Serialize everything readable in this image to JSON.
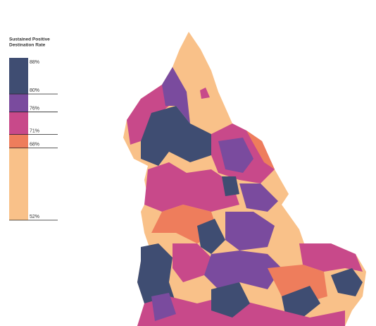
{
  "legend": {
    "title_lines": [
      "Sustained Positive",
      "Destination Rate"
    ],
    "ticks": [
      {
        "value": 88,
        "label": "88%"
      },
      {
        "value": 80,
        "label": "80%"
      },
      {
        "value": 76,
        "label": "76%"
      },
      {
        "value": 71,
        "label": "71%"
      },
      {
        "value": 68,
        "label": "68%"
      },
      {
        "value": 52,
        "label": "52%"
      }
    ],
    "colors": [
      "#3f4d72",
      "#7a4b9e",
      "#c8498a",
      "#ee7d5c",
      "#f9c189"
    ]
  }
}
